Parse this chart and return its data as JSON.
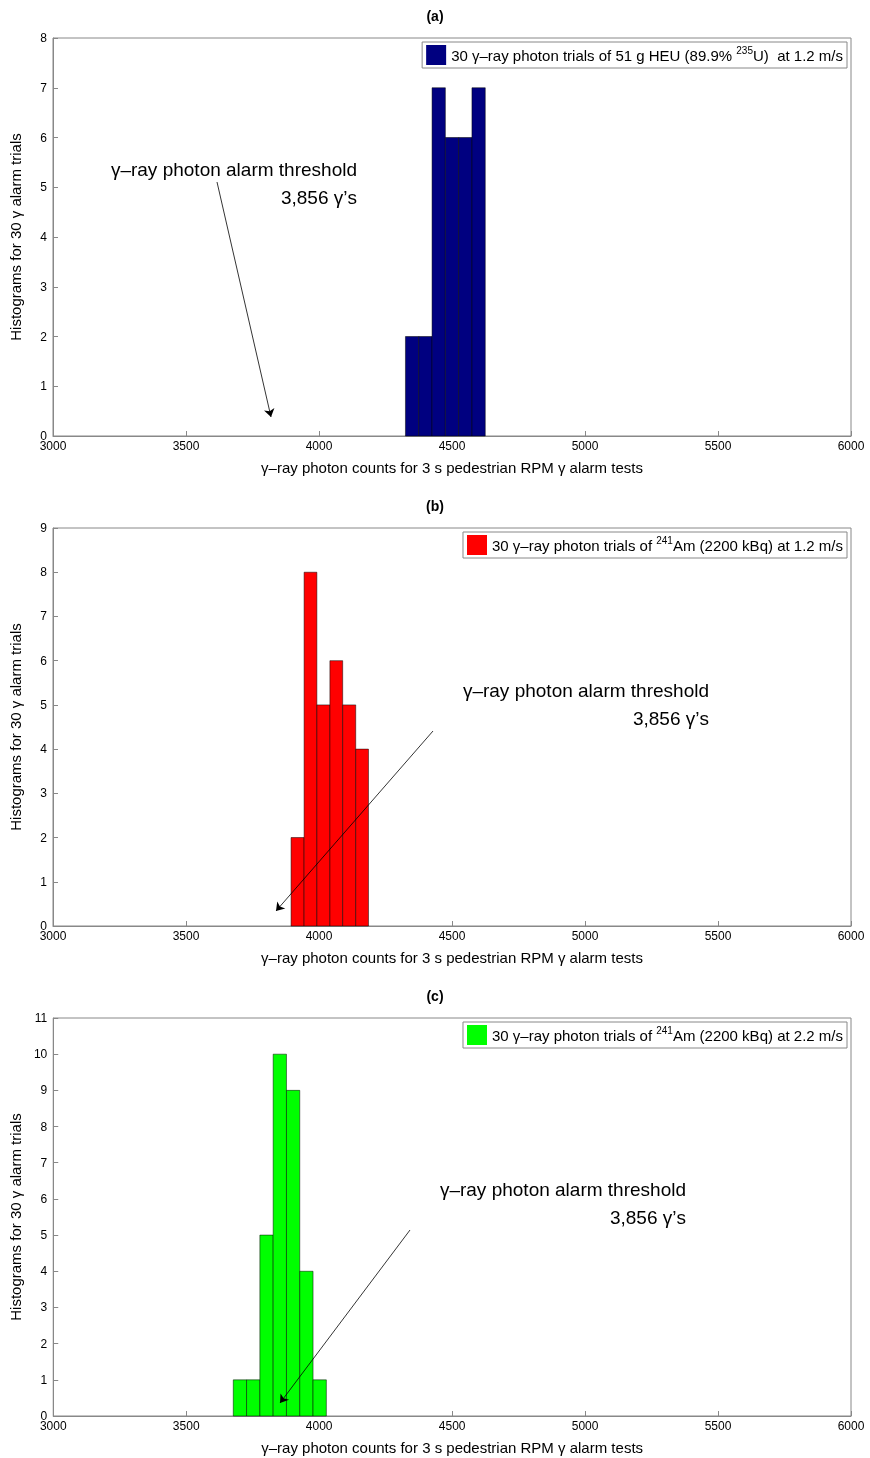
{
  "chart_data": [
    {
      "type": "histogram",
      "title": "(a)",
      "xlabel": "γ–ray photon counts for 3 s pedestrian RPM γ alarm tests",
      "ylabel": "Histograms for 30 γ alarm trials",
      "bins": [
        4325,
        4375,
        4425,
        4475,
        4525,
        4575,
        4625
      ],
      "series": [
        {
          "name": "30 γ–ray photon trials of 51 g HEU (89.9% $^{235}$U)  at 1.2 m/s",
          "color": "#000080",
          "values": [
            2,
            2,
            7,
            6,
            6,
            7
          ]
        }
      ],
      "xlim": [
        3000,
        6000
      ],
      "xticks": [
        3000,
        3500,
        4000,
        4500,
        5000,
        5500,
        6000
      ],
      "ylim": [
        0,
        8
      ],
      "yticks": [
        0,
        1,
        2,
        3,
        4,
        5,
        6,
        7,
        8
      ],
      "grid": false,
      "legend": "top right",
      "annotations": [
        "γ–ray photon alarm threshold\n3,856 γ’s"
      ]
    },
    {
      "type": "histogram",
      "title": "(b)",
      "xlabel": "γ–ray photon counts for 3 s pedestrian RPM γ alarm tests",
      "ylabel": "Histograms for 30 γ alarm trials",
      "bins": [
        3895,
        3944,
        3992,
        4041,
        4089,
        4138,
        4186
      ],
      "series": [
        {
          "name": "30 γ–ray photon trials of $^{241}$Am (2200 kBq) at 1.2 m/s",
          "color": "#ff0000",
          "values": [
            2,
            8,
            5,
            6,
            5,
            4
          ]
        }
      ],
      "xlim": [
        3000,
        6000
      ],
      "xticks": [
        3000,
        3500,
        4000,
        4500,
        5000,
        5500,
        6000
      ],
      "ylim": [
        0,
        9
      ],
      "yticks": [
        0,
        1,
        2,
        3,
        4,
        5,
        6,
        7,
        8,
        9
      ],
      "grid": false,
      "legend": "top right",
      "annotations": [
        "γ–ray photon alarm threshold\n3,856 γ’s"
      ]
    },
    {
      "type": "histogram",
      "title": "(c)",
      "xlabel": "γ–ray photon counts for 3 s pedestrian RPM γ alarm tests",
      "ylabel": "Histograms for 30 γ alarm trials",
      "bins": [
        3677,
        3727,
        3777,
        3827,
        3877,
        3927,
        3977,
        4027
      ],
      "series": [
        {
          "name": "30 γ–ray photon trials of $^{241}$Am (2200 kBq) at 2.2 m/s",
          "color": "#00ff00",
          "values": [
            1,
            1,
            5,
            10,
            9,
            4,
            1
          ]
        }
      ],
      "xlim": [
        3000,
        6000
      ],
      "xticks": [
        3000,
        3500,
        4000,
        4500,
        5000,
        5500,
        6000
      ],
      "ylim": [
        0,
        11
      ],
      "yticks": [
        0,
        1,
        2,
        3,
        4,
        5,
        6,
        7,
        8,
        9,
        10,
        11
      ],
      "grid": false,
      "legend": "top right",
      "annotations": [
        "γ–ray photon alarm threshold\n3,856 γ’s"
      ]
    }
  ]
}
